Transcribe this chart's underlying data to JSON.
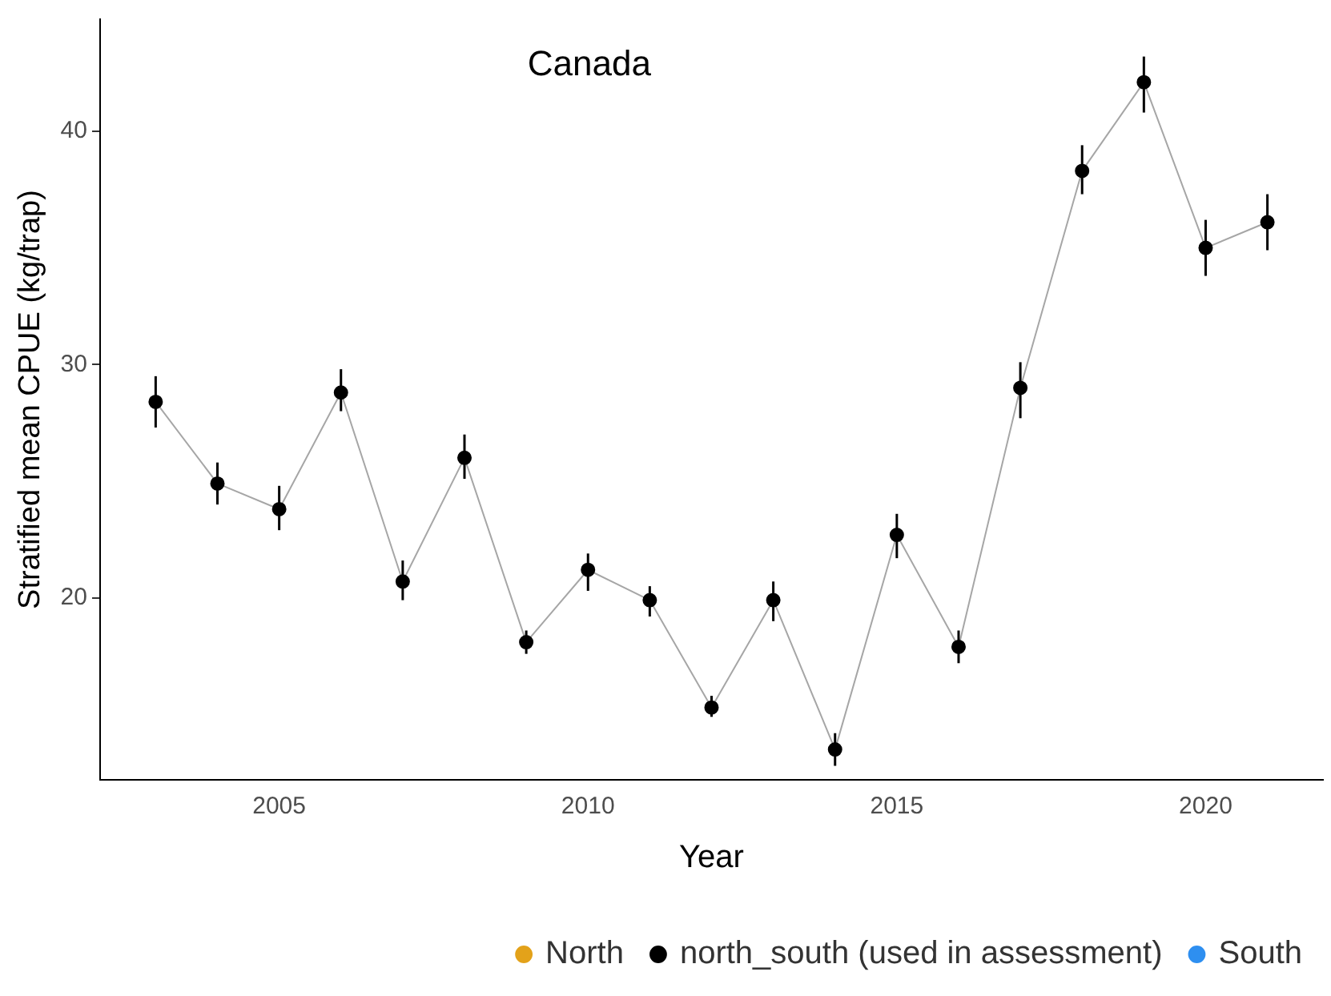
{
  "chart_data": {
    "type": "line",
    "title": "Canada",
    "xlabel": "Year",
    "ylabel": "Stratified mean CPUE (kg/trap)",
    "x": [
      2003,
      2004,
      2005,
      2006,
      2007,
      2008,
      2009,
      2010,
      2011,
      2012,
      2013,
      2014,
      2015,
      2016,
      2017,
      2018,
      2019,
      2020,
      2021
    ],
    "series": [
      {
        "name": "North",
        "color": "#e3a21a",
        "values": [
          null,
          null,
          null,
          null,
          null,
          null,
          null,
          null,
          null,
          null,
          null,
          null,
          null,
          null,
          null,
          null,
          null,
          null,
          null
        ]
      },
      {
        "name": "north_south (used in assessment)",
        "color": "#000000",
        "values": [
          28.4,
          24.9,
          23.8,
          28.8,
          20.7,
          26.0,
          18.1,
          21.2,
          19.9,
          15.3,
          19.9,
          13.5,
          22.7,
          17.9,
          29.0,
          38.3,
          42.1,
          35.0,
          36.1
        ],
        "errors": [
          [
            27.3,
            29.5
          ],
          [
            24.0,
            25.8
          ],
          [
            22.9,
            24.8
          ],
          [
            28.0,
            29.8
          ],
          [
            19.9,
            21.6
          ],
          [
            25.1,
            27.0
          ],
          [
            17.6,
            18.6
          ],
          [
            20.3,
            21.9
          ],
          [
            19.2,
            20.5
          ],
          [
            14.9,
            15.8
          ],
          [
            19.0,
            20.7
          ],
          [
            12.8,
            14.2
          ],
          [
            21.7,
            23.6
          ],
          [
            17.2,
            18.6
          ],
          [
            27.7,
            30.1
          ],
          [
            37.3,
            39.4
          ],
          [
            40.8,
            43.2
          ],
          [
            33.8,
            36.2
          ],
          [
            34.9,
            37.3
          ]
        ]
      },
      {
        "name": "South",
        "color": "#2e8ff0",
        "values": [
          null,
          null,
          null,
          null,
          null,
          null,
          null,
          null,
          null,
          null,
          null,
          null,
          null,
          null,
          null,
          null,
          null,
          null,
          null
        ]
      }
    ],
    "xlim": [
      2002.1,
      2021.9
    ],
    "xticks": [
      2005,
      2010,
      2015,
      2020
    ],
    "ylim": [
      12.2,
      44.8
    ],
    "yticks": [
      20,
      30,
      40
    ],
    "grid": false,
    "legend": "bottom right",
    "marker": "circle",
    "line_style": "solid"
  }
}
